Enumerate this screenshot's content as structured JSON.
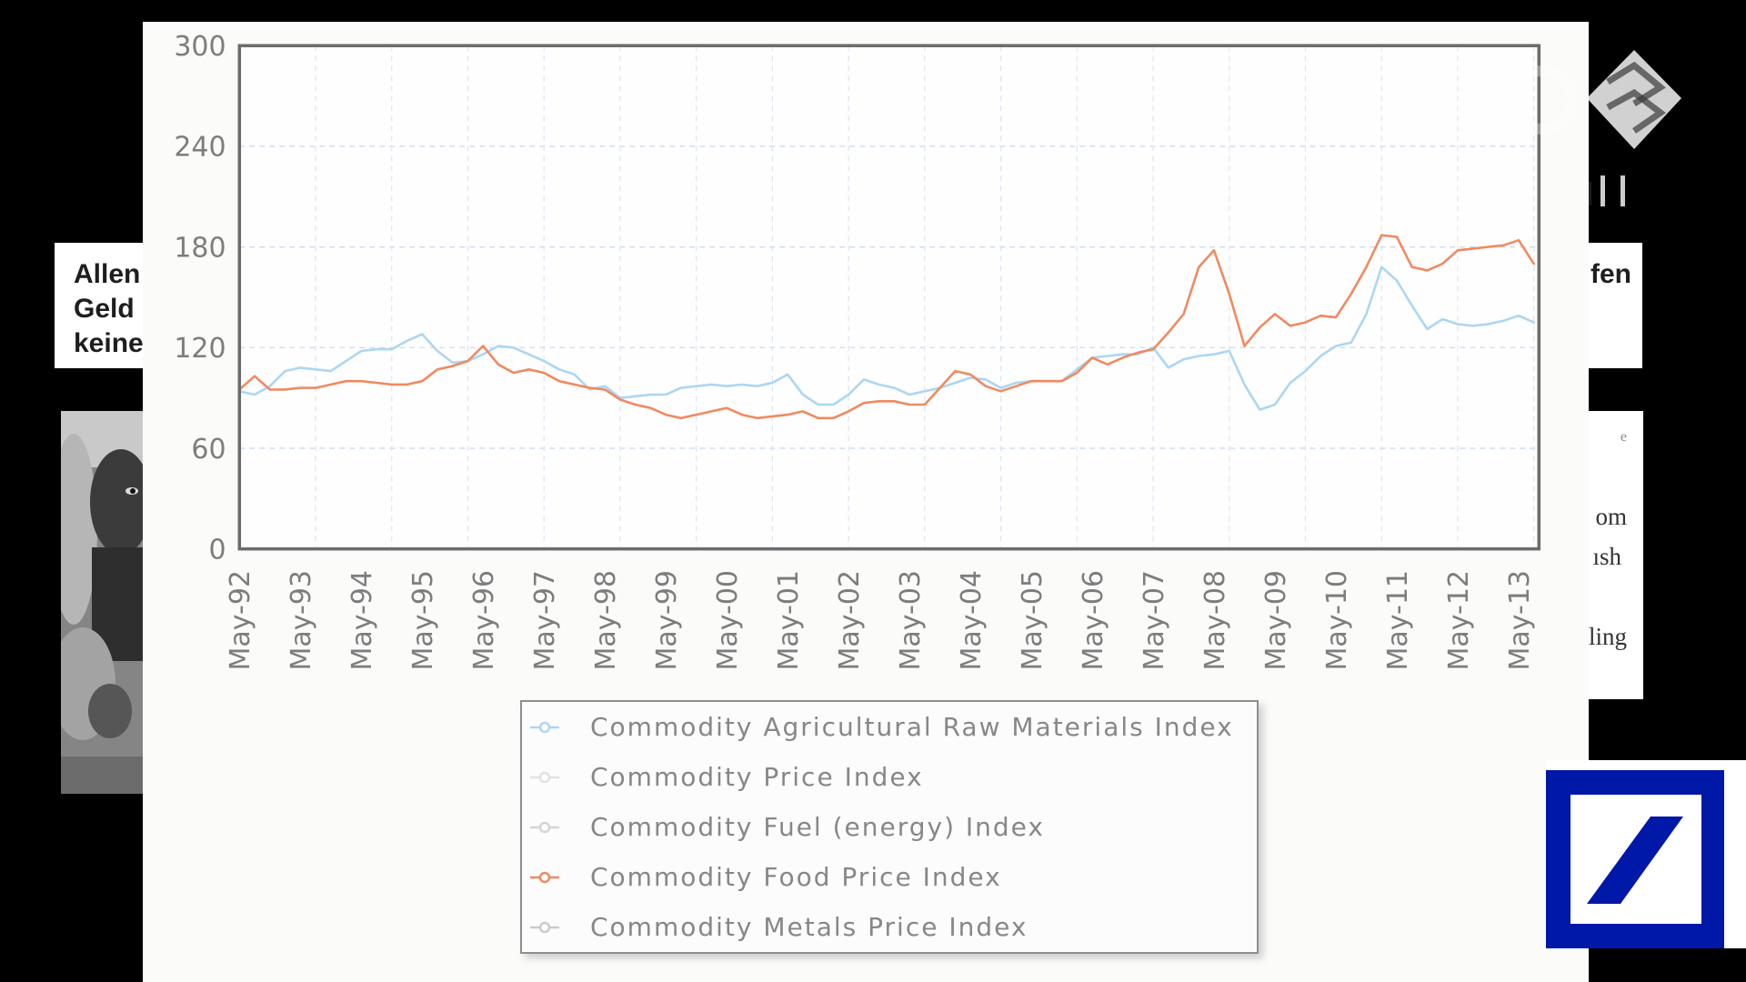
{
  "left_caption": {
    "lines": [
      "Allen",
      "Geld",
      "keine"
    ]
  },
  "right_caption": {
    "line": "fen"
  },
  "right_snippet": {
    "lines": [
      "e",
      "om",
      "ısh",
      "ling"
    ]
  },
  "images": {
    "left_photo": "child-photo",
    "channel_logo": "tv-channel-logo",
    "bank_logo": "deutsche-bank-logo"
  },
  "colors": {
    "bank_blue": "#0018a8",
    "panel": "#fbfbfa"
  },
  "chart_data": {
    "type": "line",
    "xlim": [
      "1992-05",
      "2013-09"
    ],
    "ylim": [
      0,
      300
    ],
    "y_ticks": [
      0,
      60,
      120,
      180,
      240,
      300
    ],
    "x_ticks": [
      {
        "date": "1992-05",
        "label": "May-92"
      },
      {
        "date": "1993-05",
        "label": "May-93"
      },
      {
        "date": "1994-05",
        "label": "May-94"
      },
      {
        "date": "1995-05",
        "label": "May-95"
      },
      {
        "date": "1996-05",
        "label": "May-96"
      },
      {
        "date": "1997-05",
        "label": "May-97"
      },
      {
        "date": "1998-05",
        "label": "May-98"
      },
      {
        "date": "1999-05",
        "label": "May-99"
      },
      {
        "date": "2000-05",
        "label": "May-00"
      },
      {
        "date": "2001-05",
        "label": "May-01"
      },
      {
        "date": "2002-05",
        "label": "May-02"
      },
      {
        "date": "2003-05",
        "label": "May-03"
      },
      {
        "date": "2004-05",
        "label": "May-04"
      },
      {
        "date": "2005-05",
        "label": "May-05"
      },
      {
        "date": "2006-05",
        "label": "May-06"
      },
      {
        "date": "2007-05",
        "label": "May-07"
      },
      {
        "date": "2008-05",
        "label": "May-08"
      },
      {
        "date": "2009-05",
        "label": "May-09"
      },
      {
        "date": "2010-05",
        "label": "May-10"
      },
      {
        "date": "2011-05",
        "label": "May-11"
      },
      {
        "date": "2012-05",
        "label": "May-12"
      },
      {
        "date": "2013-05",
        "label": "May-13"
      }
    ],
    "grid": true,
    "legend": "bottom",
    "x": [
      "1992-05",
      "1992-08",
      "1992-11",
      "1993-02",
      "1993-05",
      "1993-08",
      "1993-11",
      "1994-02",
      "1994-05",
      "1994-08",
      "1994-11",
      "1995-02",
      "1995-05",
      "1995-08",
      "1995-11",
      "1996-02",
      "1996-05",
      "1996-08",
      "1996-11",
      "1997-02",
      "1997-05",
      "1997-08",
      "1997-11",
      "1998-02",
      "1998-05",
      "1998-08",
      "1998-11",
      "1999-02",
      "1999-05",
      "1999-08",
      "1999-11",
      "2000-02",
      "2000-05",
      "2000-08",
      "2000-11",
      "2001-02",
      "2001-05",
      "2001-08",
      "2001-11",
      "2002-02",
      "2002-05",
      "2002-08",
      "2002-11",
      "2003-02",
      "2003-05",
      "2003-08",
      "2003-11",
      "2004-02",
      "2004-05",
      "2004-08",
      "2004-11",
      "2005-02",
      "2005-05",
      "2005-08",
      "2005-11",
      "2006-02",
      "2006-05",
      "2006-08",
      "2006-11",
      "2007-02",
      "2007-05",
      "2007-08",
      "2007-11",
      "2008-02",
      "2008-05",
      "2008-08",
      "2008-11",
      "2009-02",
      "2009-05",
      "2009-08",
      "2009-11",
      "2010-02",
      "2010-05",
      "2010-08",
      "2010-11",
      "2011-02",
      "2011-05",
      "2011-08",
      "2011-11",
      "2012-02",
      "2012-05",
      "2012-08",
      "2012-11",
      "2013-02",
      "2013-05",
      "2013-08"
    ],
    "series": [
      {
        "name": "Commodity Agricultural Raw Materials Index",
        "color": "#acd6f4",
        "visible": true,
        "values": [
          94,
          92,
          97,
          106,
          108,
          107,
          106,
          112,
          118,
          119,
          119,
          124,
          128,
          118,
          111,
          112,
          116,
          121,
          120,
          116,
          112,
          107,
          104,
          95,
          97,
          90,
          91,
          92,
          92,
          96,
          97,
          98,
          97,
          98,
          97,
          99,
          104,
          92,
          86,
          86,
          92,
          101,
          98,
          96,
          92,
          94,
          96,
          99,
          102,
          101,
          96,
          99,
          100,
          100,
          100,
          107,
          114,
          115,
          116,
          116,
          120,
          108,
          113,
          115,
          116,
          118,
          98,
          83,
          86,
          99,
          106,
          115,
          121,
          123,
          140,
          168,
          160,
          145,
          131,
          137,
          134,
          133,
          134,
          136,
          139,
          135
        ]
      },
      {
        "name": "Commodity Price Index",
        "color": "#e2e2e2",
        "visible": false
      },
      {
        "name": "Commodity Fuel (energy) Index",
        "color": "#d5d5d5",
        "visible": false
      },
      {
        "name": "Commodity Food Price Index",
        "color": "#f08a60",
        "visible": true,
        "values": [
          95,
          103,
          95,
          95,
          96,
          96,
          98,
          100,
          100,
          99,
          98,
          98,
          100,
          107,
          109,
          112,
          121,
          110,
          105,
          107,
          105,
          100,
          98,
          96,
          95,
          89,
          86,
          84,
          80,
          78,
          80,
          82,
          84,
          80,
          78,
          79,
          80,
          82,
          78,
          78,
          82,
          87,
          88,
          88,
          86,
          86,
          96,
          106,
          104,
          97,
          94,
          97,
          100,
          100,
          100,
          105,
          114,
          110,
          114,
          117,
          119,
          129,
          140,
          168,
          178,
          152,
          121,
          132,
          140,
          133,
          135,
          139,
          138,
          152,
          168,
          187,
          186,
          168,
          166,
          170,
          178,
          179,
          180,
          181,
          184,
          170
        ]
      },
      {
        "name": "Commodity Metals Price Index",
        "color": "#cbcbcb",
        "visible": false
      }
    ]
  }
}
